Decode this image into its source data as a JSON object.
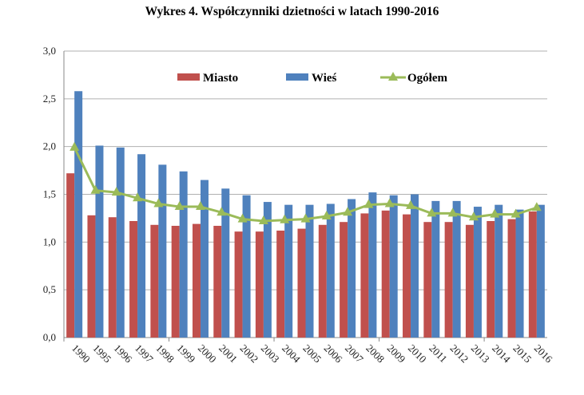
{
  "chart_data": {
    "type": "bar",
    "title": "Wykres 4. Współczynniki dzietności w latach 1990-2016",
    "xlabel": "",
    "ylabel": "",
    "ylim": [
      0,
      3.0
    ],
    "yticks": [
      "0,0",
      "0,5",
      "1,0",
      "1,5",
      "2,0",
      "2,5",
      "3,0"
    ],
    "grid": true,
    "legend_placement": "top",
    "categories": [
      "1990",
      "1995",
      "1996",
      "1997",
      "1998",
      "1999",
      "2000",
      "2001",
      "2002",
      "2003",
      "2004",
      "2005",
      "2006",
      "2007",
      "2008",
      "2009",
      "2010",
      "2011",
      "2012",
      "2013",
      "2014",
      "2015",
      "2016"
    ],
    "series": [
      {
        "name": "Miasto",
        "type": "bar",
        "color": "#C0504D",
        "values": [
          1.72,
          1.28,
          1.26,
          1.22,
          1.18,
          1.17,
          1.19,
          1.17,
          1.11,
          1.11,
          1.12,
          1.14,
          1.18,
          1.21,
          1.3,
          1.33,
          1.29,
          1.21,
          1.21,
          1.18,
          1.22,
          1.24,
          1.32
        ]
      },
      {
        "name": "Wieś",
        "type": "bar",
        "color": "#4F81BD",
        "values": [
          2.58,
          2.01,
          1.99,
          1.92,
          1.81,
          1.74,
          1.65,
          1.56,
          1.49,
          1.42,
          1.39,
          1.39,
          1.4,
          1.45,
          1.52,
          1.49,
          1.5,
          1.43,
          1.43,
          1.37,
          1.39,
          1.34,
          1.39
        ]
      },
      {
        "name": "Ogółem",
        "type": "line",
        "color": "#9BBB59",
        "marker": "triangle",
        "values": [
          1.99,
          1.54,
          1.52,
          1.46,
          1.4,
          1.37,
          1.37,
          1.31,
          1.24,
          1.22,
          1.23,
          1.24,
          1.27,
          1.31,
          1.39,
          1.4,
          1.38,
          1.3,
          1.3,
          1.26,
          1.29,
          1.29,
          1.36
        ]
      }
    ]
  }
}
